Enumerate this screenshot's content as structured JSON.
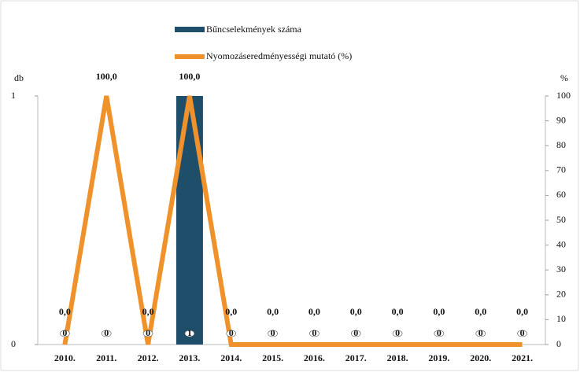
{
  "chart_data": {
    "type": "bar-line",
    "categories": [
      "2010.",
      "2011.",
      "2012.",
      "2013.",
      "2014.",
      "2015.",
      "2016.",
      "2017.",
      "2018.",
      "2019.",
      "2020.",
      "2021."
    ],
    "series": [
      {
        "name": "Bűncselekmények száma",
        "color": "#1f4e6b",
        "type": "bar",
        "axis": "y",
        "values": [
          0,
          0,
          0,
          1,
          0,
          0,
          0,
          0,
          0,
          0,
          0,
          0
        ]
      },
      {
        "name": "Nyomozáseredményességi mutató (%)",
        "color": "#f0922b",
        "type": "line",
        "axis": "y2",
        "values": [
          0,
          100,
          0,
          100,
          0,
          0,
          0,
          0,
          0,
          0,
          0,
          0
        ],
        "value_labels": [
          "0,0",
          "100,0",
          "0,0",
          "100,0",
          "0,0",
          "0,0",
          "0,0",
          "0,0",
          "0,0",
          "0,0",
          "0,0",
          "0,0"
        ]
      }
    ],
    "ylabel": "db",
    "y2label": "%",
    "ylim": [
      0,
      1
    ],
    "yticks": [
      0,
      1
    ],
    "y2lim": [
      0,
      100
    ],
    "y2ticks": [
      0,
      10,
      20,
      30,
      40,
      50,
      60,
      70,
      80,
      90,
      100
    ]
  }
}
